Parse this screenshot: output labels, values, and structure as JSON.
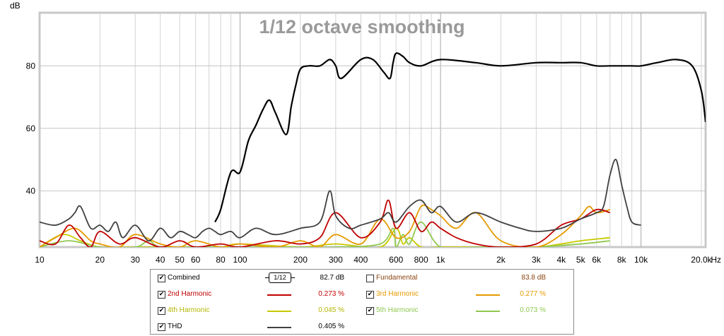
{
  "chart_data": {
    "type": "line",
    "title": "1/12 octave smoothing",
    "ylabel": "dB",
    "xunit": "Hz",
    "xscale": "log",
    "xlim": [
      10,
      21000
    ],
    "ylim": [
      22,
      97
    ],
    "grid": true,
    "yticks": [
      {
        "v": 40,
        "label": "40"
      },
      {
        "v": 60,
        "label": "60"
      },
      {
        "v": 80,
        "label": "80"
      }
    ],
    "xticks": [
      {
        "v": 10,
        "label": "10"
      },
      {
        "v": 20,
        "label": "20"
      },
      {
        "v": 30,
        "label": "30"
      },
      {
        "v": 40,
        "label": "40"
      },
      {
        "v": 50,
        "label": "50"
      },
      {
        "v": 60,
        "label": "60"
      },
      {
        "v": 80,
        "label": "80"
      },
      {
        "v": 100,
        "label": "100"
      },
      {
        "v": 200,
        "label": "200"
      },
      {
        "v": 300,
        "label": "300"
      },
      {
        "v": 400,
        "label": "400"
      },
      {
        "v": 600,
        "label": "600"
      },
      {
        "v": 800,
        "label": "800"
      },
      {
        "v": 1000,
        "label": "1k"
      },
      {
        "v": 2000,
        "label": "2k"
      },
      {
        "v": 3000,
        "label": "3k"
      },
      {
        "v": 4000,
        "label": "4k"
      },
      {
        "v": 5000,
        "label": "5k"
      },
      {
        "v": 6000,
        "label": "6k"
      },
      {
        "v": 8000,
        "label": "8k"
      },
      {
        "v": 10000,
        "label": "10k"
      },
      {
        "v": 20000,
        "label": "20.0k"
      }
    ],
    "series": [
      {
        "name": "Combined",
        "color": "#000000",
        "x": [
          10,
          20,
          40,
          60,
          75,
          80,
          90,
          100,
          110,
          120,
          130,
          140,
          150,
          170,
          180,
          190,
          200,
          220,
          250,
          280,
          300,
          320,
          400,
          460,
          520,
          560,
          580,
          600,
          650,
          700,
          800,
          1000,
          1500,
          2000,
          3000,
          4000,
          5000,
          6000,
          7000,
          8000,
          9000,
          10000,
          12000,
          15000,
          18000,
          20000,
          21000
        ],
        "y": [
          null,
          null,
          null,
          null,
          30,
          34,
          46,
          46,
          56,
          61,
          66,
          69,
          65,
          58,
          67,
          74,
          79,
          80,
          80,
          82,
          80,
          76,
          82,
          82,
          78,
          76,
          81,
          84,
          83,
          81,
          80,
          82,
          81,
          80,
          81,
          81,
          81,
          80,
          80,
          80,
          80,
          80,
          81,
          82,
          80,
          72,
          62
        ]
      },
      {
        "name": "THD",
        "color": "#404040",
        "x": [
          10,
          12,
          14,
          15,
          16,
          18,
          20,
          22,
          24,
          26,
          30,
          35,
          40,
          45,
          50,
          55,
          60,
          65,
          70,
          75,
          80,
          90,
          100,
          120,
          150,
          200,
          250,
          280,
          300,
          350,
          400,
          500,
          550,
          600,
          700,
          800,
          900,
          1000,
          1200,
          1500,
          2000,
          2500,
          3000,
          4000,
          5000,
          6000,
          6500,
          7000,
          7500,
          8000,
          8500,
          9000,
          10000
        ],
        "y": [
          30,
          29,
          31,
          33,
          35,
          28,
          29,
          27,
          30,
          25,
          29,
          24,
          28,
          25,
          27,
          26,
          25,
          27,
          28,
          27,
          26,
          27,
          25,
          28,
          26,
          28,
          30,
          40,
          32,
          28,
          29,
          31,
          33,
          30,
          35,
          37,
          33,
          35,
          30,
          33,
          30,
          28,
          27,
          28,
          31,
          33,
          35,
          45,
          50,
          42,
          35,
          30,
          29
        ]
      },
      {
        "name": "2nd Harmonic",
        "color": "#c00000",
        "x": [
          10,
          12,
          14,
          16,
          18,
          20,
          25,
          30,
          40,
          50,
          60,
          80,
          100,
          150,
          200,
          250,
          300,
          400,
          500,
          550,
          600,
          700,
          800,
          900,
          1000,
          1200,
          1500,
          2000,
          3000,
          4000,
          5000,
          6000,
          7000
        ],
        "y": [
          24,
          23,
          29,
          25,
          22,
          27,
          23,
          25,
          22,
          24,
          22,
          23,
          22,
          24,
          23,
          25,
          33,
          25,
          30,
          37,
          28,
          33,
          27,
          30,
          28,
          25,
          23,
          22,
          23,
          29,
          31,
          34,
          33
        ]
      },
      {
        "name": "3rd Harmonic",
        "color": "#e59a00",
        "x": [
          10,
          12,
          15,
          18,
          20,
          25,
          30,
          40,
          50,
          60,
          80,
          100,
          150,
          200,
          250,
          300,
          400,
          500,
          600,
          700,
          800,
          900,
          1000,
          1200,
          1500,
          2000,
          3000,
          4000,
          5000,
          5500,
          6000,
          7000
        ],
        "y": [
          22,
          25,
          28,
          24,
          23,
          22,
          26,
          23,
          22,
          24,
          22,
          23,
          22,
          24,
          22,
          26,
          23,
          31,
          25,
          27,
          35,
          34,
          32,
          28,
          33,
          24,
          22,
          26,
          32,
          35,
          33,
          34
        ]
      },
      {
        "name": "4th Harmonic",
        "color": "#c8c800",
        "x": [
          10,
          13,
          16,
          20,
          30,
          50,
          80,
          100,
          200,
          300,
          500,
          600,
          650,
          700,
          800,
          1000,
          1500,
          2000,
          3000,
          4000,
          5000,
          7000
        ],
        "y": [
          22,
          26,
          24,
          22,
          22,
          22,
          22,
          23,
          22,
          23,
          22,
          28,
          23,
          25,
          22,
          22,
          22,
          22,
          22,
          23,
          24,
          25
        ]
      },
      {
        "name": "5th Harmonic",
        "color": "#90c850",
        "x": [
          10,
          14,
          20,
          30,
          35,
          40,
          60,
          100,
          200,
          300,
          500,
          580,
          600,
          650,
          700,
          800,
          1000,
          1500,
          2000,
          3000,
          5000,
          7000
        ],
        "y": [
          22,
          24,
          22,
          22,
          24,
          22,
          22,
          22,
          22,
          22,
          23,
          28,
          22,
          26,
          23,
          30,
          22,
          22,
          22,
          22,
          23,
          24
        ]
      }
    ]
  },
  "legend": [
    {
      "label": "Combined",
      "checked": true,
      "checkmark": "✔",
      "color": "#000000",
      "smoothing_label": "1/12",
      "value": "82.7 dB"
    },
    {
      "label": "Fundamental",
      "checked": false,
      "checkmark": "",
      "color": "#8b4513",
      "value": "83.8 dB"
    },
    {
      "label": "2nd Harmonic",
      "checked": true,
      "checkmark": "✔",
      "color": "#c00000",
      "value": "0.273 %"
    },
    {
      "label": "3rd Harmonic",
      "checked": true,
      "checkmark": "✔",
      "color": "#e59a00",
      "value": "0.277 %"
    },
    {
      "label": "4th Harmonic",
      "checked": true,
      "checkmark": "✔",
      "color": "#b5b500",
      "value": "0.045 %"
    },
    {
      "label": "5th Harmonic",
      "checked": true,
      "checkmark": "✔",
      "color": "#90c850",
      "value": "0.073 %"
    },
    {
      "label": "THD",
      "checked": true,
      "checkmark": "✔",
      "color": "#404040",
      "value": "0.405 %"
    }
  ]
}
